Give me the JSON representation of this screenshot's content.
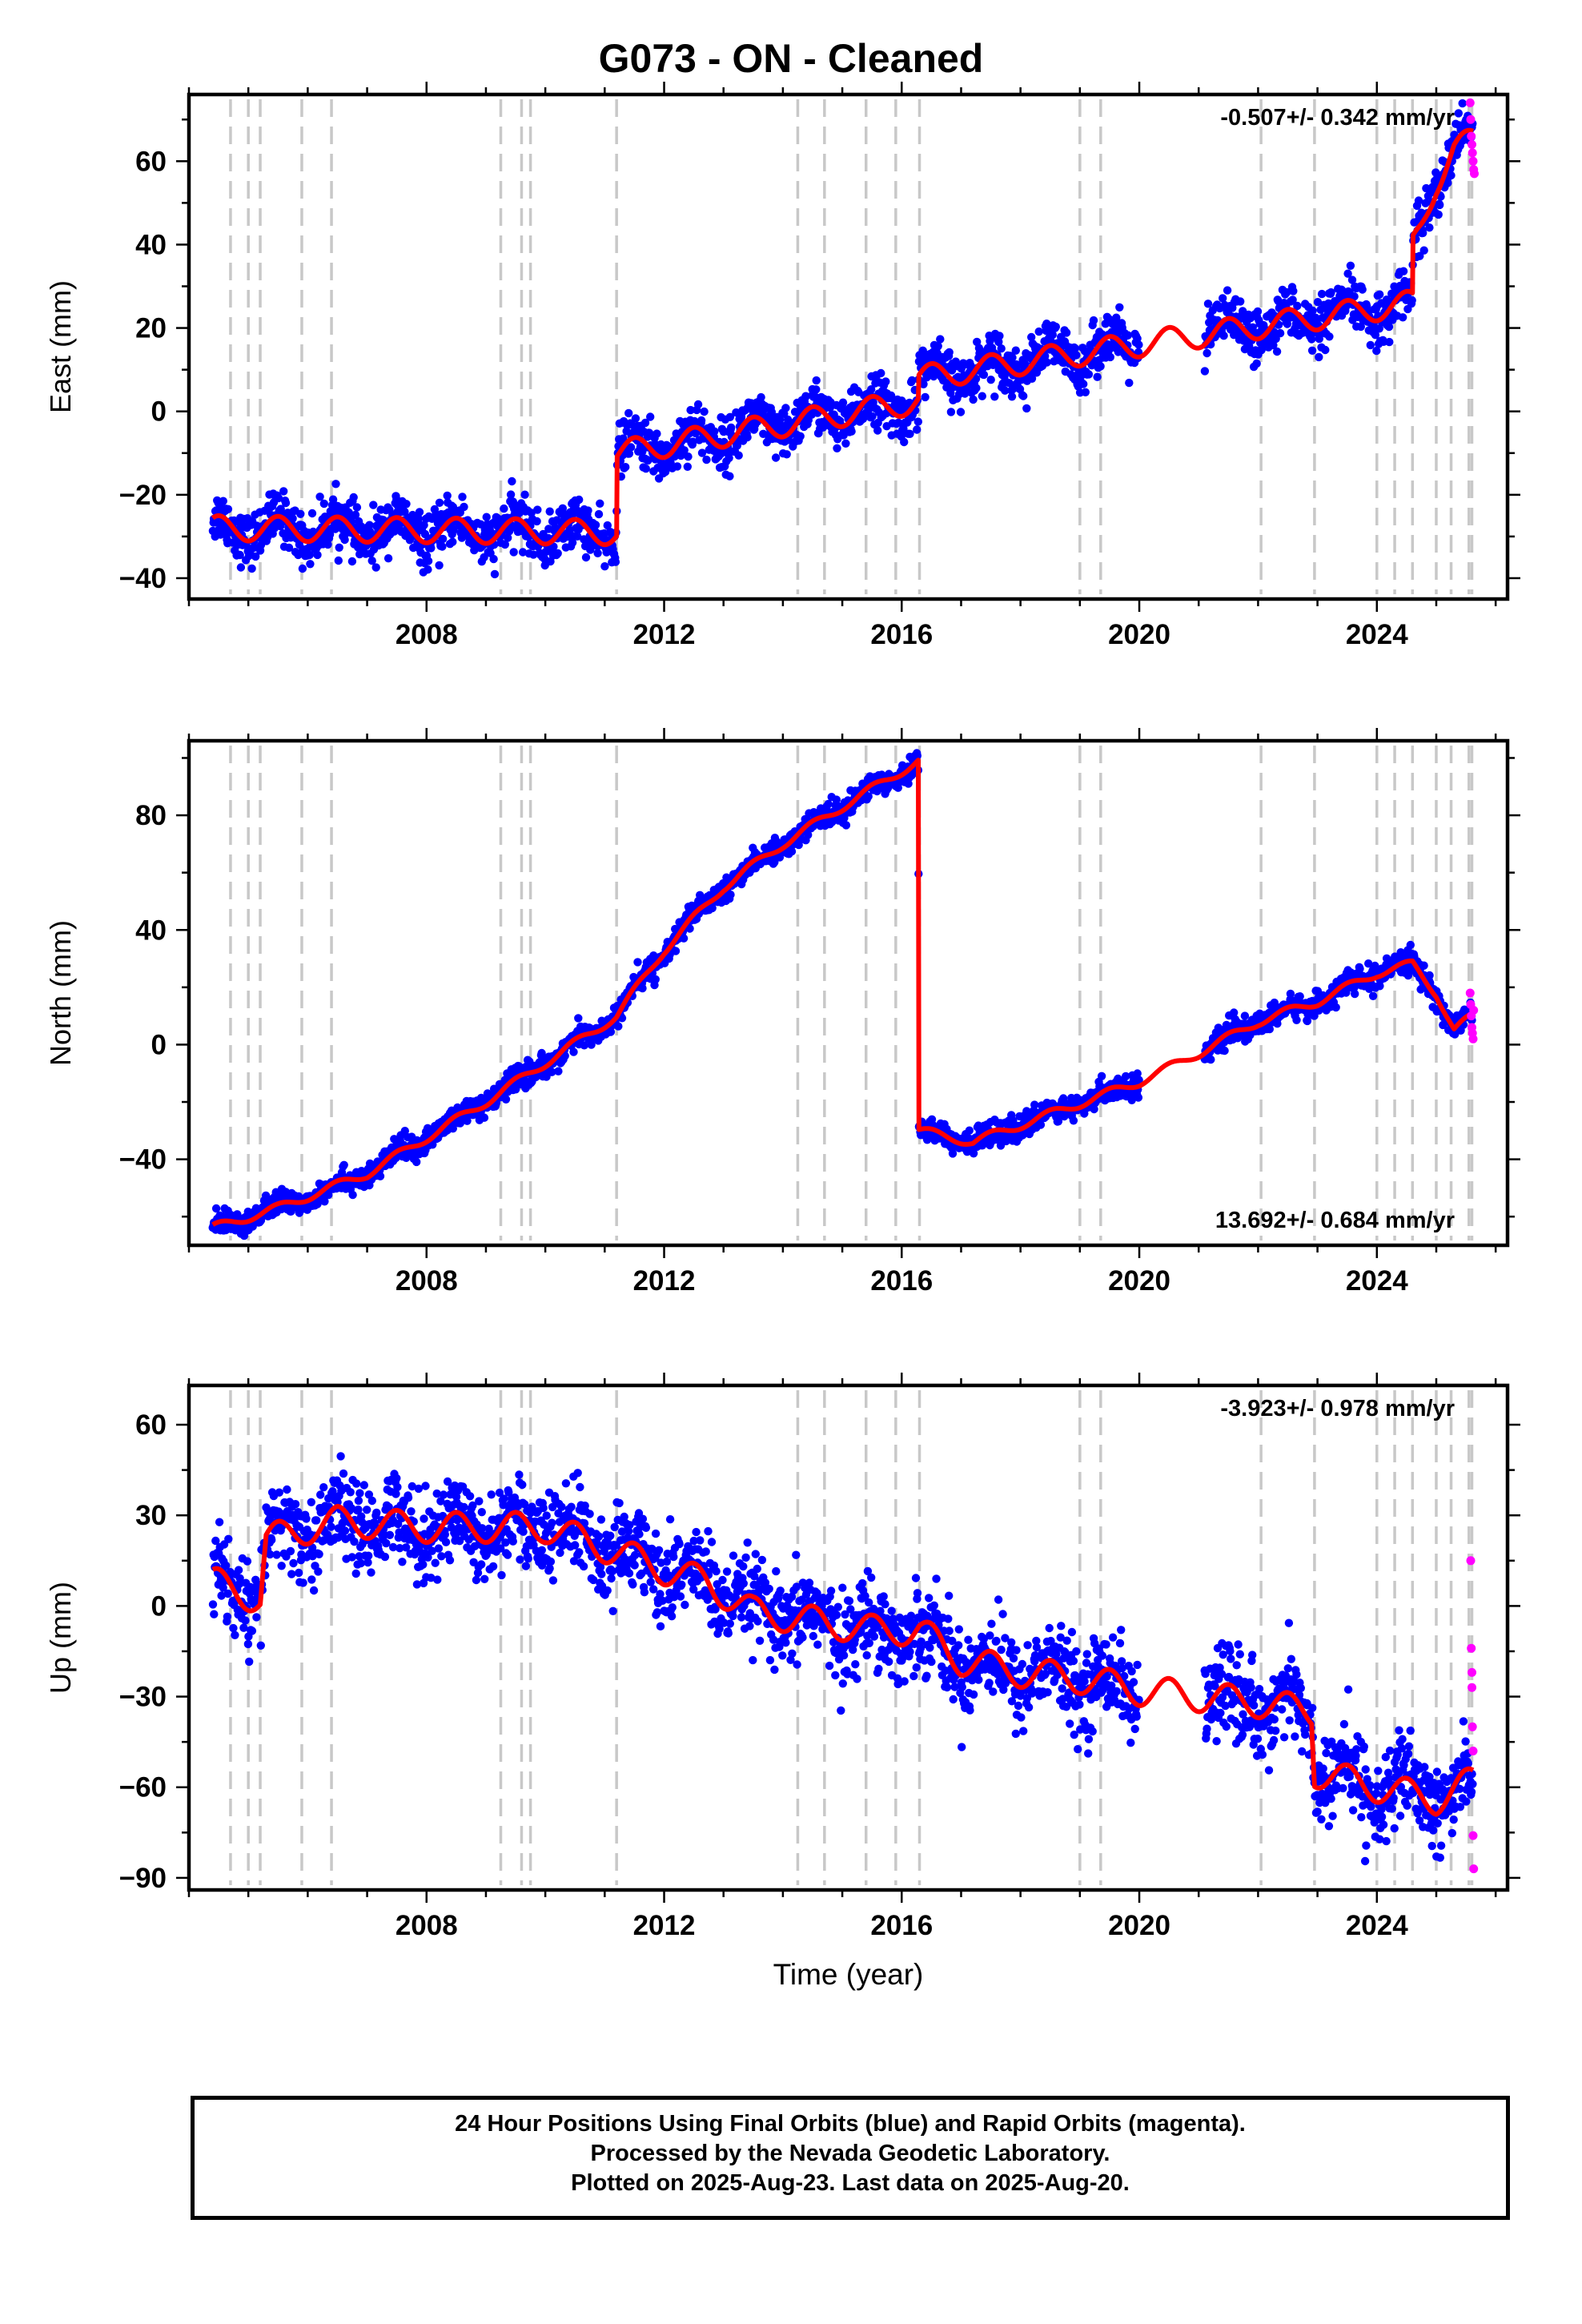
{
  "page": {
    "title": "G073  - ON - Cleaned",
    "footer": [
      "24 Hour Positions Using Final Orbits (blue) and Rapid Orbits (magenta).",
      "Processed by the Nevada Geodetic Laboratory.",
      "Plotted on 2025-Aug-23. Last data on 2025-Aug-20."
    ]
  },
  "colors": {
    "final_orbits": "#0000ff",
    "rapid_orbits": "#ff00ff",
    "model": "#ff0000",
    "event_lines": "#c8c8c8",
    "frame": "#000000"
  },
  "chart_data": [
    {
      "type": "scatter",
      "component": "East",
      "ylabel": "East (mm)",
      "xlabel": "",
      "xlim": [
        2004.0,
        2026.2
      ],
      "ylim": [
        -45,
        76
      ],
      "yticks": [
        -40,
        -20,
        0,
        20,
        40,
        60
      ],
      "xticks": [
        2008,
        2012,
        2016,
        2020,
        2024
      ],
      "rate_label": "-0.507+/- 0.342 mm/yr",
      "rate_label_position": "top-right",
      "event_lines": [
        2004.7,
        2005.0,
        2005.2,
        2005.9,
        2006.4,
        2009.25,
        2009.6,
        2009.75,
        2011.2,
        2014.25,
        2014.7,
        2015.4,
        2015.9,
        2016.3,
        2019.0,
        2019.35,
        2022.05,
        2022.95,
        2024.0,
        2024.3,
        2024.6,
        2025.0,
        2025.25,
        2025.55,
        2025.6
      ],
      "series": [
        {
          "name": "Final Orbits (blue)",
          "model_x": [
            2004.4,
            2011.2,
            2011.21,
            2016.28,
            2016.29,
            2024.6,
            2024.61,
            2024.75,
            2025.0,
            2025.3,
            2025.62
          ],
          "model_y": [
            -28,
            -29,
            -10,
            2.5,
            8,
            26,
            40,
            45,
            55,
            63,
            65
          ],
          "seasonal_amplitude": 3,
          "point_scatter": [
            3,
            3,
            3,
            3,
            3,
            3,
            3,
            3,
            3,
            3,
            3
          ],
          "gaps": [
            [
              2020.0,
              2021.1
            ]
          ],
          "points_per_year": 110
        },
        {
          "name": "Rapid Orbits (magenta)",
          "x": [
            2025.57,
            2025.58,
            2025.59,
            2025.6,
            2025.61,
            2025.62,
            2025.63,
            2025.64
          ],
          "y": [
            74,
            70,
            66,
            64,
            62,
            60,
            58,
            57
          ]
        }
      ]
    },
    {
      "type": "scatter",
      "component": "North",
      "ylabel": "North (mm)",
      "xlabel": "",
      "xlim": [
        2004.0,
        2026.2
      ],
      "ylim": [
        -70,
        106
      ],
      "yticks": [
        -40,
        0,
        40,
        80
      ],
      "xticks": [
        2008,
        2012,
        2016,
        2020,
        2024
      ],
      "rate_label": "13.692+/- 0.684 mm/yr",
      "rate_label_position": "bottom-right",
      "event_lines": [
        2004.7,
        2005.0,
        2005.2,
        2005.9,
        2006.4,
        2009.25,
        2009.6,
        2009.75,
        2011.2,
        2014.25,
        2014.7,
        2015.4,
        2015.9,
        2016.3,
        2019.0,
        2019.35,
        2022.05,
        2022.95,
        2024.0,
        2024.3,
        2024.6,
        2025.0,
        2025.25,
        2025.55,
        2025.6
      ],
      "series": [
        {
          "name": "Final Orbits (blue)",
          "model_x": [
            2004.4,
            2005.5,
            2007.0,
            2009.0,
            2011.2,
            2012.0,
            2013.0,
            2014.0,
            2015.0,
            2016.28,
            2016.29,
            2017.2,
            2018.0,
            2020.0,
            2021.0,
            2022.0,
            2023.0,
            2024.0,
            2024.6,
            2025.0,
            2025.3,
            2025.62
          ],
          "model_y": [
            -64,
            -57,
            -45,
            -20,
            10,
            33,
            55,
            70,
            83,
            99,
            -30,
            -34,
            -28,
            -13,
            -3,
            8,
            15,
            25,
            28,
            18,
            5,
            10
          ],
          "seasonal_amplitude": 1.5,
          "point_scatter": [
            2,
            2,
            2,
            2,
            2,
            2,
            2,
            2,
            2,
            2,
            2,
            2,
            2,
            2,
            2,
            2,
            2,
            2,
            2,
            2,
            2,
            2
          ],
          "gaps": [
            [
              2020.0,
              2021.1
            ]
          ],
          "points_per_year": 110
        },
        {
          "name": "Rapid Orbits (magenta)",
          "x": [
            2025.57,
            2025.58,
            2025.59,
            2025.6,
            2025.61,
            2025.62,
            2025.63
          ],
          "y": [
            18,
            14,
            10,
            6,
            4,
            2,
            12
          ]
        }
      ]
    },
    {
      "type": "scatter",
      "component": "Up",
      "ylabel": "Up (mm)",
      "xlabel": "Time (year)",
      "xlim": [
        2004.0,
        2026.2
      ],
      "ylim": [
        -94,
        73
      ],
      "yticks": [
        -90,
        -60,
        -30,
        0,
        30,
        60
      ],
      "xticks": [
        2008,
        2012,
        2016,
        2020,
        2024
      ],
      "rate_label": "-3.923+/- 0.978 mm/yr",
      "rate_label_position": "top-right",
      "event_lines": [
        2004.7,
        2005.0,
        2005.2,
        2005.9,
        2006.4,
        2009.25,
        2009.6,
        2009.75,
        2011.2,
        2014.25,
        2014.7,
        2015.4,
        2015.9,
        2016.3,
        2019.0,
        2019.35,
        2022.05,
        2022.95,
        2024.0,
        2024.3,
        2024.6,
        2025.0,
        2025.25,
        2025.55,
        2025.6
      ],
      "series": [
        {
          "name": "Final Orbits (blue)",
          "model_x": [
            2004.4,
            2005.2,
            2005.3,
            2006.5,
            2008.0,
            2010.0,
            2011.2,
            2012.0,
            2012.7,
            2013.5,
            2014.5,
            2015.5,
            2016.3,
            2017.0,
            2018.0,
            2019.0,
            2020.0,
            2021.0,
            2022.0,
            2022.9,
            2022.95,
            2024.0,
            2025.0,
            2025.62
          ],
          "model_y": [
            8,
            2,
            22,
            28,
            26,
            26,
            18,
            12,
            8,
            -2,
            -5,
            -8,
            -8,
            -18,
            -22,
            -24,
            -28,
            -30,
            -32,
            -35,
            -55,
            -60,
            -64,
            -58
          ],
          "seasonal_amplitude": 5,
          "point_scatter": [
            7,
            7,
            7,
            7,
            7,
            7,
            7,
            7,
            7,
            7,
            7,
            7,
            7,
            7,
            7,
            7,
            7,
            7,
            7,
            7,
            7,
            7,
            7,
            7
          ],
          "gaps": [
            [
              2020.0,
              2021.1
            ]
          ],
          "points_per_year": 110
        },
        {
          "name": "Rapid Orbits (magenta)",
          "x": [
            2025.58,
            2025.59,
            2025.6,
            2025.6,
            2025.61,
            2025.62,
            2025.62,
            2025.63
          ],
          "y": [
            15,
            -14,
            -22,
            -27,
            -40,
            -48,
            -76,
            -87
          ]
        }
      ]
    }
  ]
}
